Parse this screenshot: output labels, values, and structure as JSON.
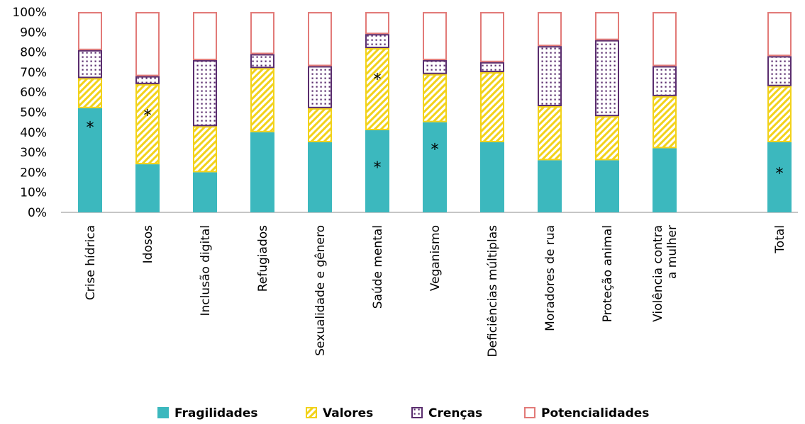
{
  "chart_data": {
    "type": "bar",
    "stacked": true,
    "title": "",
    "xlabel": "",
    "ylabel": "",
    "ylim": [
      0,
      100
    ],
    "y_ticks": [
      "0%",
      "10%",
      "20%",
      "30%",
      "40%",
      "50%",
      "60%",
      "70%",
      "80%",
      "90%",
      "100%"
    ],
    "grid": false,
    "legend_position": "bottom",
    "categories": [
      "Crise hídrica",
      "Idosos",
      "Inclusão digital",
      "Refugiados",
      "Sexualidade e gênero",
      "Saúde mental",
      "Veganismo",
      "Deficiências múltiplas",
      "Moradores de rua",
      "Proteção animal",
      "Violência contra a mulher",
      "",
      "Total"
    ],
    "category_lines": [
      [
        "Crise hídrica"
      ],
      [
        "Idosos"
      ],
      [
        "Inclusão digital"
      ],
      [
        "Refugiados"
      ],
      [
        "Sexualidade e gênero"
      ],
      [
        "Saúde mental"
      ],
      [
        "Veganismo"
      ],
      [
        "Deficiências múltiplas"
      ],
      [
        "Moradores de rua"
      ],
      [
        "Proteção animal"
      ],
      [
        "Violência contra",
        "a mulher"
      ],
      [],
      [
        "Total"
      ]
    ],
    "series": [
      {
        "name": "Fragilidades",
        "values": [
          52,
          24,
          20,
          40,
          35,
          41,
          45,
          35,
          26,
          26,
          32,
          null,
          35
        ]
      },
      {
        "name": "Valores",
        "values": [
          15,
          40,
          23,
          32,
          17,
          41,
          24,
          35,
          27,
          22,
          26,
          null,
          28
        ]
      },
      {
        "name": "Crenças",
        "values": [
          14,
          4,
          33,
          7,
          21,
          7,
          7,
          5,
          30,
          38,
          15,
          null,
          15
        ]
      },
      {
        "name": "Potencialidades",
        "values": [
          19,
          32,
          24,
          21,
          27,
          11,
          24,
          25,
          17,
          14,
          27,
          null,
          22
        ]
      }
    ],
    "colors": {
      "Fragilidades": "#3cb8be",
      "Valores": "#f2d21a",
      "Crenças": "#5a2d6e",
      "Potencialidades": "#e27a78"
    },
    "annotations": [
      {
        "text": "*",
        "category": "Crise hídrica",
        "series": "Fragilidades",
        "y": 44
      },
      {
        "text": "*",
        "category": "Idosos",
        "series": "Valores",
        "y": 50
      },
      {
        "text": "*",
        "category": "Saúde mental",
        "series": "Valores",
        "y": 68
      },
      {
        "text": "*",
        "category": "Saúde mental",
        "series": "Fragilidades",
        "y": 24
      },
      {
        "text": "*",
        "category": "Veganismo",
        "series": "Fragilidades",
        "y": 33
      },
      {
        "text": "*",
        "category": "Total",
        "series": "Fragilidades",
        "y": 21
      }
    ]
  }
}
